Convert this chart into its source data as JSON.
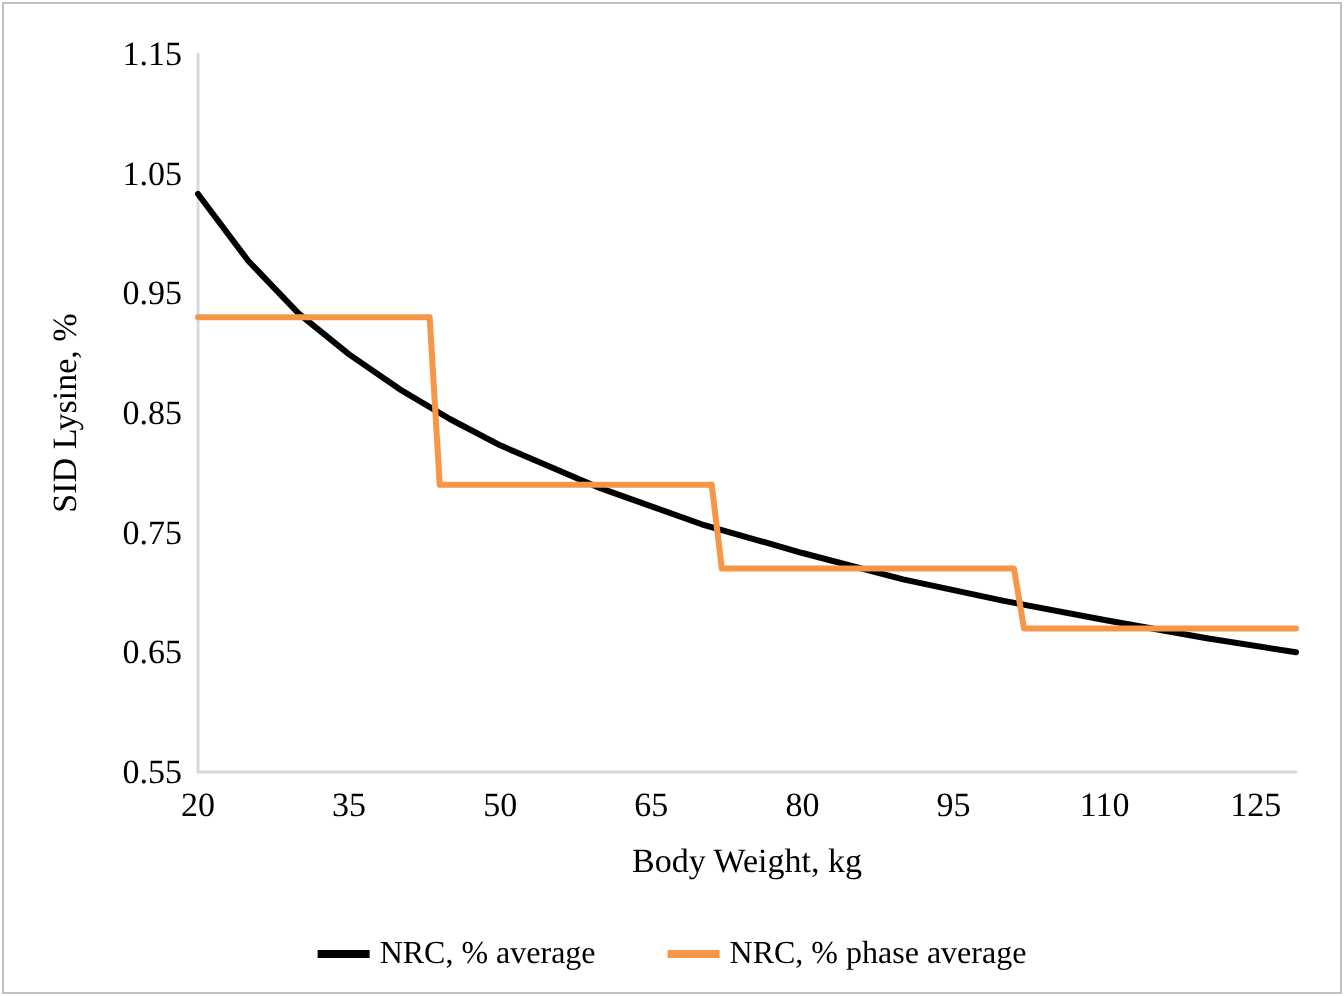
{
  "chart_data": {
    "type": "line",
    "xlabel": "Body Weight, kg",
    "ylabel": "SID Lysine, %",
    "xlim": [
      20,
      129
    ],
    "xticks": [
      20,
      35,
      50,
      65,
      80,
      95,
      110,
      125
    ],
    "ylim": [
      0.55,
      1.15
    ],
    "yticks": [
      0.55,
      0.65,
      0.75,
      0.85,
      0.95,
      1.05,
      1.15
    ],
    "grid": false,
    "legend": "bottom",
    "marker": "none",
    "line_style": "solid",
    "series": [
      {
        "name": "NRC, % average",
        "color": "#000000",
        "x": [
          20,
          25,
          30,
          35,
          40,
          45,
          50,
          60,
          70,
          80,
          90,
          100,
          110,
          120,
          129
        ],
        "values": [
          1.033,
          0.977,
          0.933,
          0.899,
          0.87,
          0.845,
          0.823,
          0.787,
          0.757,
          0.733,
          0.711,
          0.693,
          0.677,
          0.662,
          0.65
        ]
      },
      {
        "name": "NRC, % phase average",
        "color": "#f79646",
        "x": [
          20,
          43,
          44,
          71,
          72,
          101,
          102,
          129
        ],
        "values": [
          0.93,
          0.93,
          0.79,
          0.79,
          0.72,
          0.72,
          0.67,
          0.67
        ]
      }
    ]
  }
}
